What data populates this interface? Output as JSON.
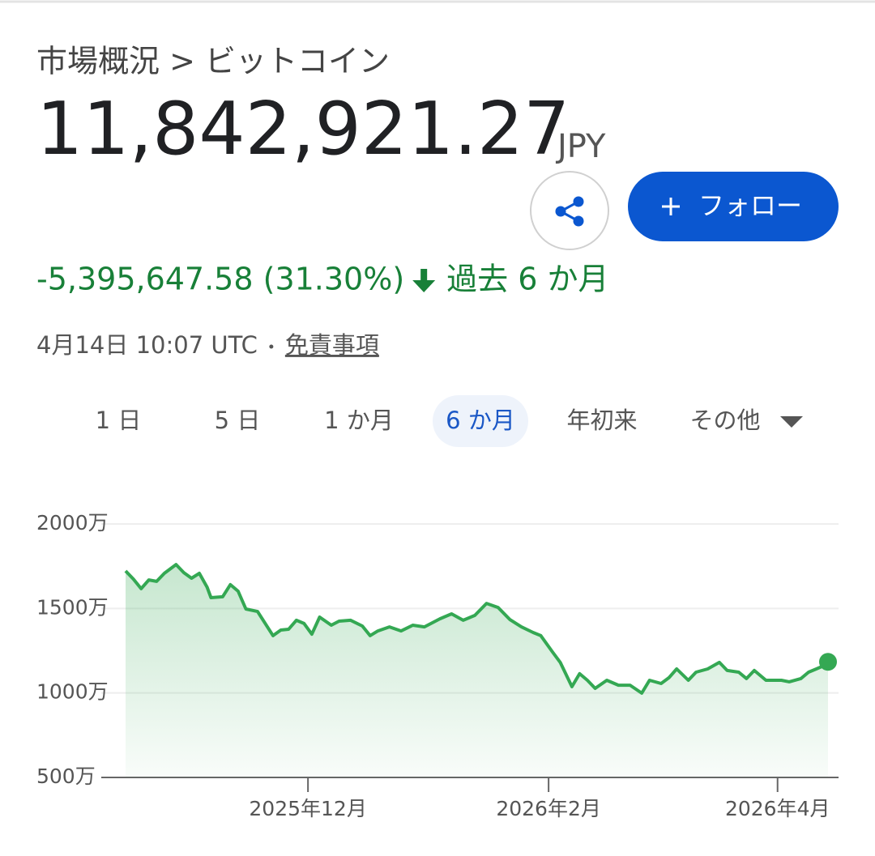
{
  "header": {
    "breadcrumb": "市場概況 > ビットコイン",
    "price": "11,842,921.27",
    "currency": "JPY",
    "follow": "フォロー"
  },
  "change": {
    "amount": "-5,395,647.58 (31.30%)",
    "period": "過去 6 か月"
  },
  "meta": {
    "timestamp": "4月14日 10:07 UTC",
    "disclaimer": "免責事項"
  },
  "tabs": {
    "items": [
      "1 日",
      "5 日",
      "1 か月",
      "6 か月",
      "年初来",
      "その他"
    ],
    "selected": 3
  },
  "chart_data": {
    "type": "area",
    "color": "#34a853",
    "x": [
      "2025-10-15",
      "2025-10-17",
      "2025-10-19",
      "2025-10-21",
      "2025-10-23",
      "2025-10-25",
      "2025-10-28",
      "2025-10-30",
      "2025-11-01",
      "2025-11-03",
      "2025-11-05",
      "2025-11-06",
      "2025-11-09",
      "2025-11-11",
      "2025-11-13",
      "2025-11-15",
      "2025-11-18",
      "2025-11-20",
      "2025-11-22",
      "2025-11-24",
      "2025-11-26",
      "2025-11-28",
      "2025-11-30",
      "2025-12-02",
      "2025-12-04",
      "2025-12-07",
      "2025-12-09",
      "2025-12-12",
      "2025-12-15",
      "2025-12-17",
      "2025-12-19",
      "2025-12-22",
      "2025-12-25",
      "2025-12-28",
      "2025-12-31",
      "2026-01-04",
      "2026-01-07",
      "2026-01-10",
      "2026-01-13",
      "2026-01-16",
      "2026-01-19",
      "2026-01-22",
      "2026-01-25",
      "2026-01-28",
      "2026-01-30",
      "2026-02-02",
      "2026-02-04",
      "2026-02-07",
      "2026-02-09",
      "2026-02-11",
      "2026-02-13",
      "2026-02-16",
      "2026-02-19",
      "2026-02-22",
      "2026-02-25",
      "2026-02-27",
      "2026-03-02",
      "2026-03-04",
      "2026-03-06",
      "2026-03-09",
      "2026-03-11",
      "2026-03-14",
      "2026-03-17",
      "2026-03-19",
      "2026-03-22",
      "2026-03-24",
      "2026-03-26",
      "2026-03-29",
      "2026-04-02",
      "2026-04-04",
      "2026-04-07",
      "2026-04-09",
      "2026-04-11",
      "2026-04-13",
      "2026-04-14"
    ],
    "values": [
      1722,
      1674,
      1617,
      1669,
      1660,
      1708,
      1760,
      1712,
      1679,
      1708,
      1626,
      1564,
      1569,
      1641,
      1602,
      1497,
      1482,
      1411,
      1339,
      1372,
      1377,
      1430,
      1411,
      1348,
      1449,
      1401,
      1425,
      1430,
      1396,
      1339,
      1367,
      1391,
      1367,
      1401,
      1391,
      1439,
      1468,
      1430,
      1459,
      1530,
      1506,
      1435,
      1391,
      1358,
      1339,
      1243,
      1181,
      1037,
      1114,
      1075,
      1027,
      1075,
      1046,
      1046,
      999,
      1075,
      1056,
      1090,
      1142,
      1075,
      1123,
      1142,
      1181,
      1133,
      1123,
      1085,
      1133,
      1075,
      1075,
      1066,
      1085,
      1123,
      1142,
      1162,
      1184
    ],
    "xlim": [
      "2025-10-15",
      "2026-04-14"
    ],
    "xticks": [
      {
        "value": "2025-12-01",
        "label": "2025年12月"
      },
      {
        "value": "2026-02-01",
        "label": "2026年2月"
      },
      {
        "value": "2026-04-01",
        "label": "2026年4月"
      }
    ],
    "ylim": [
      500,
      2000
    ],
    "yticks": [
      {
        "value": 500,
        "label": "500万"
      },
      {
        "value": 1000,
        "label": "1000万"
      },
      {
        "value": 1500,
        "label": "1500万"
      },
      {
        "value": 2000,
        "label": "2000万"
      }
    ],
    "grid": true
  }
}
